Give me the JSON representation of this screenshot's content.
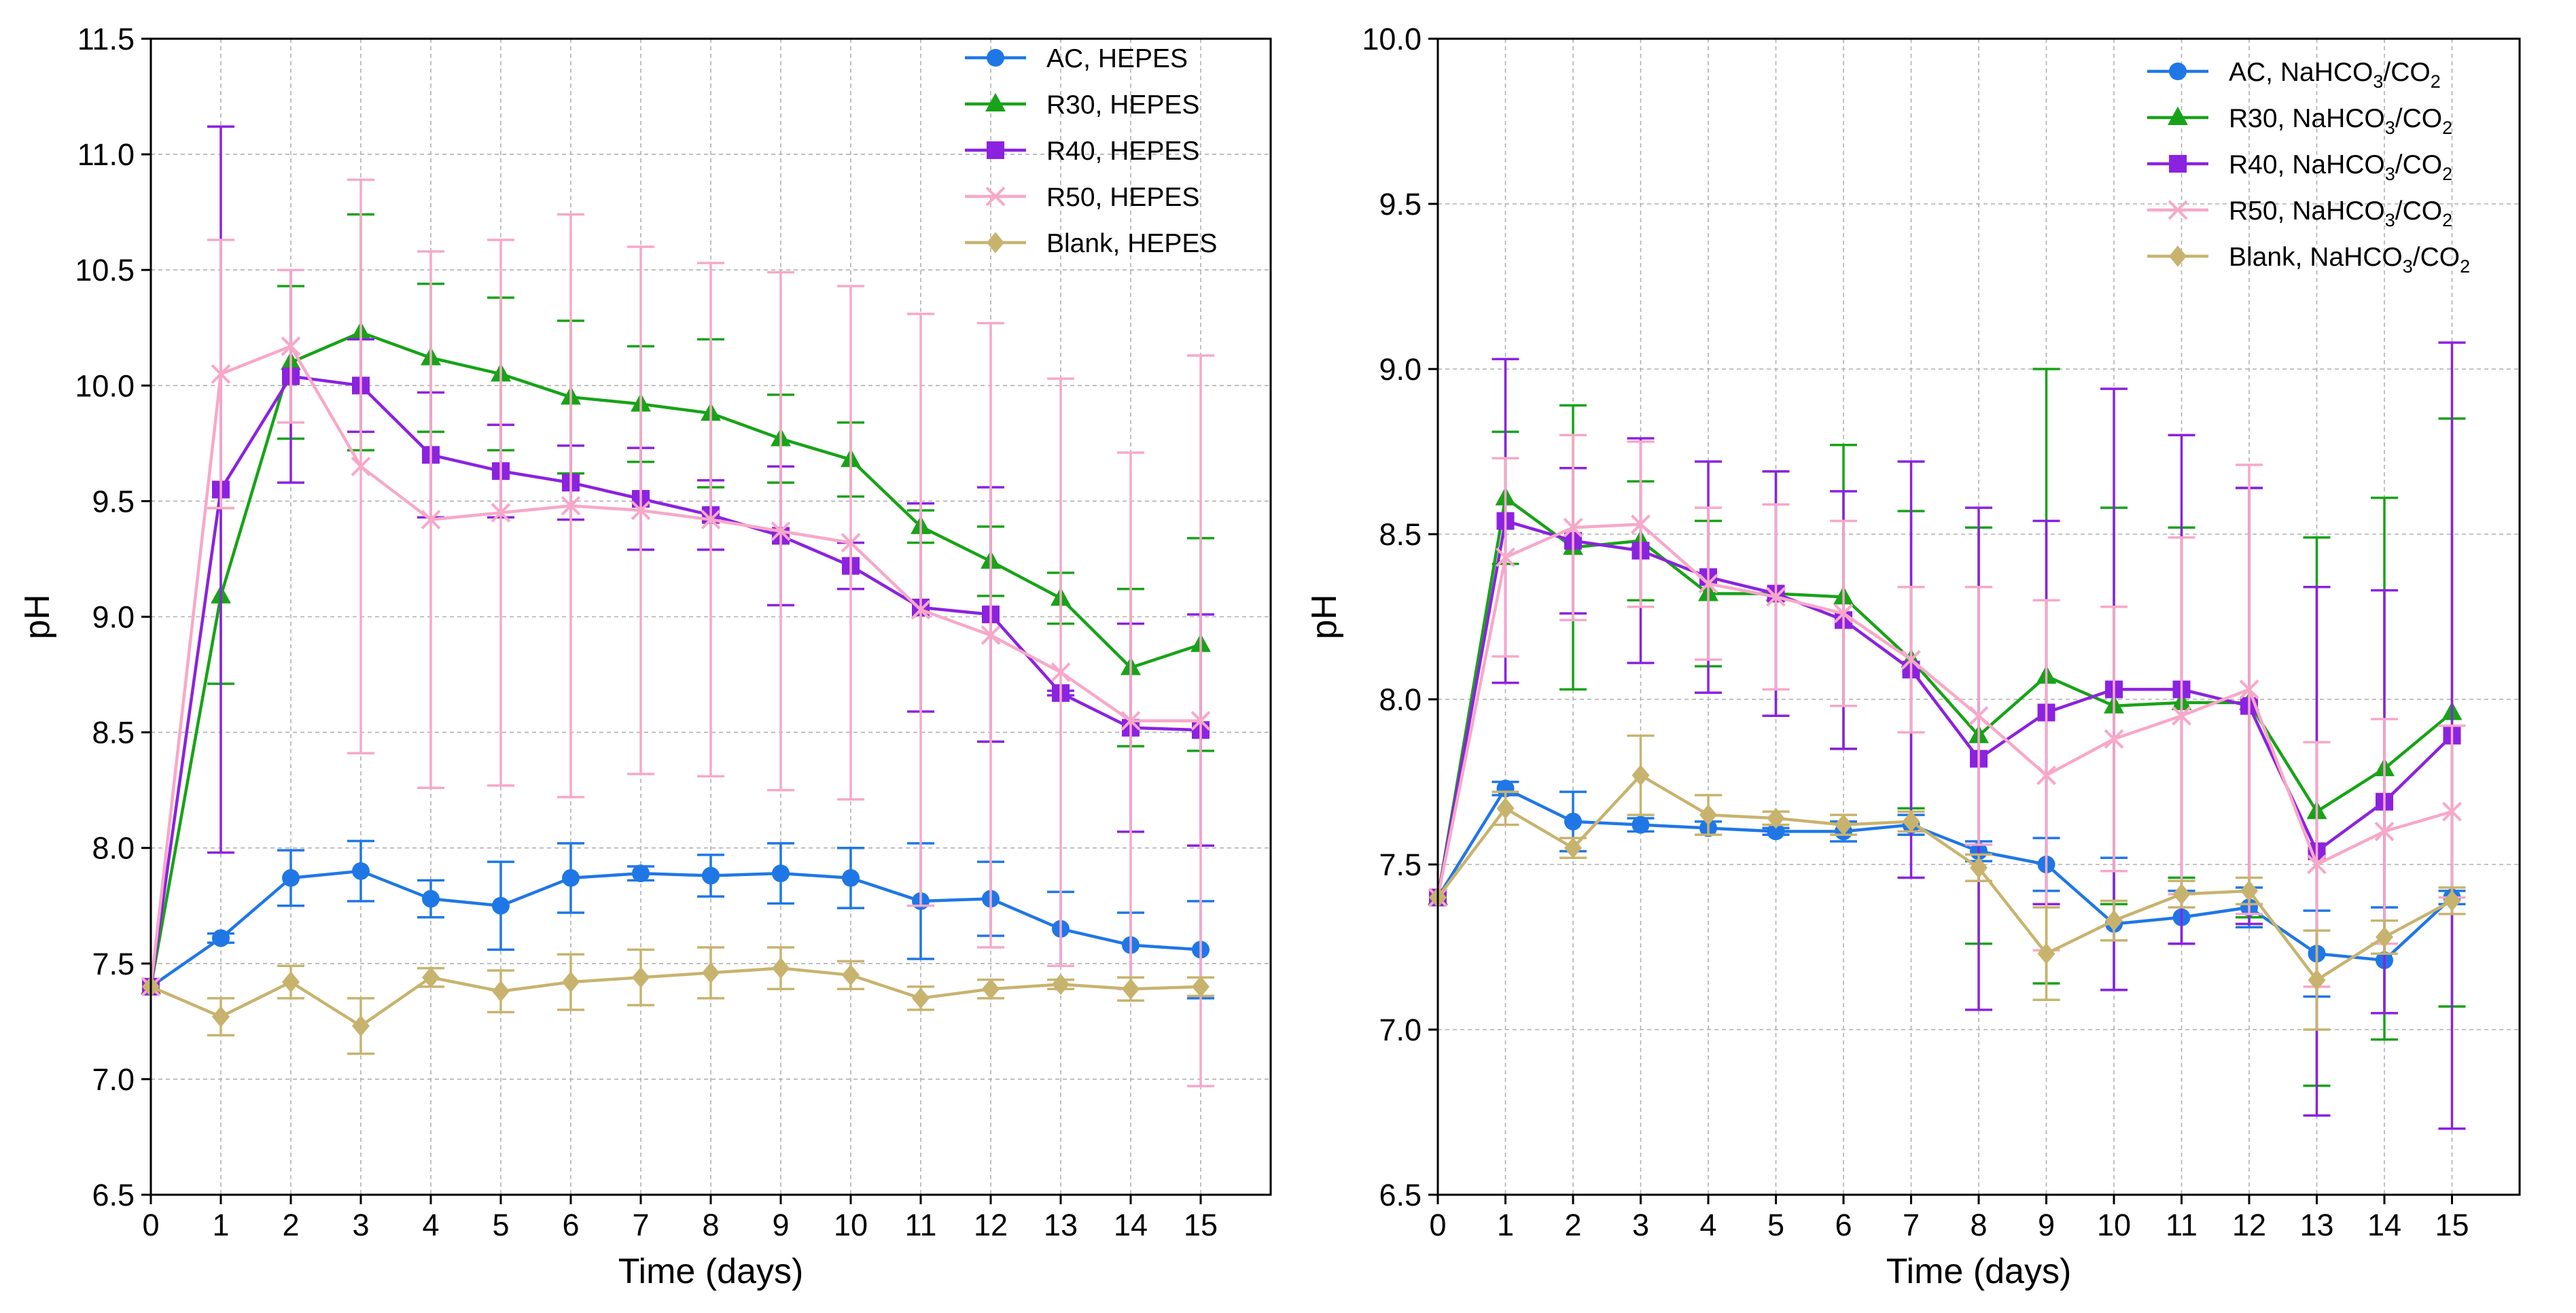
{
  "chart_data": [
    {
      "type": "line",
      "title": "",
      "xlabel": "Time (days)",
      "ylabel": "pH",
      "xlim": [
        0,
        16
      ],
      "ylim": [
        6.5,
        11.5
      ],
      "xticks": [
        0,
        1,
        2,
        3,
        4,
        5,
        6,
        7,
        8,
        9,
        10,
        11,
        12,
        13,
        14,
        15
      ],
      "yticks": [
        6.5,
        7.0,
        7.5,
        8.0,
        8.5,
        9.0,
        9.5,
        10.0,
        10.5,
        11.0,
        11.5
      ],
      "ytick_labels": [
        "6.5",
        "7.0",
        "7.5",
        "8.0",
        "8.5",
        "9.0",
        "9.5",
        "10.0",
        "10.5",
        "11.0",
        "11.5"
      ],
      "grid": true,
      "error_bars": true,
      "legend_position": "top-right",
      "x": [
        0,
        1,
        2,
        3,
        4,
        5,
        6,
        7,
        8,
        9,
        10,
        11,
        12,
        13,
        14,
        15
      ],
      "series": [
        {
          "name": "AC, HEPES",
          "label": [
            "AC, HEPES"
          ],
          "color": "#1f77e6",
          "marker": "circle",
          "values": [
            7.4,
            7.61,
            7.87,
            7.9,
            7.78,
            7.75,
            7.87,
            7.89,
            7.88,
            7.89,
            7.87,
            7.77,
            7.78,
            7.65,
            7.58,
            7.56
          ],
          "errors": [
            0,
            0.02,
            0.12,
            0.13,
            0.08,
            0.19,
            0.15,
            0.03,
            0.09,
            0.13,
            0.13,
            0.25,
            0.16,
            0.16,
            0.14,
            0.21
          ]
        },
        {
          "name": "R30, HEPES",
          "label": [
            "R30, HEPES"
          ],
          "color": "#17a317",
          "marker": "triangle",
          "values": [
            7.4,
            9.09,
            10.1,
            10.23,
            10.12,
            10.05,
            9.95,
            9.92,
            9.88,
            9.77,
            9.68,
            9.39,
            9.24,
            9.08,
            8.78,
            8.88
          ],
          "errors": [
            0,
            0.38,
            0.33,
            0.51,
            0.32,
            0.33,
            0.33,
            0.25,
            0.32,
            0.19,
            0.16,
            0.07,
            0.15,
            0.11,
            0.34,
            0.46
          ]
        },
        {
          "name": "R40, HEPES",
          "label": [
            "R40, HEPES"
          ],
          "color": "#8b22e0",
          "marker": "square",
          "values": [
            7.4,
            9.55,
            10.04,
            10.0,
            9.7,
            9.63,
            9.58,
            9.51,
            9.44,
            9.35,
            9.22,
            9.04,
            9.01,
            8.67,
            8.52,
            8.51
          ],
          "errors": [
            0,
            1.57,
            0.46,
            0.2,
            0.27,
            0.2,
            0.16,
            0.22,
            0.15,
            0.3,
            0.1,
            0.45,
            0.55,
            0.01,
            0.45,
            0.5
          ]
        },
        {
          "name": "R50, HEPES",
          "label": [
            "R50, HEPES"
          ],
          "color": "#f7a8c8",
          "marker": "x",
          "values": [
            7.4,
            10.05,
            10.17,
            9.65,
            9.42,
            9.45,
            9.48,
            9.46,
            9.42,
            9.37,
            9.32,
            9.03,
            8.92,
            8.76,
            8.55,
            8.55
          ],
          "errors": [
            0,
            0.58,
            0.33,
            1.24,
            1.16,
            1.18,
            1.26,
            1.14,
            1.11,
            1.12,
            1.11,
            1.28,
            1.35,
            1.27,
            1.16,
            1.58
          ]
        },
        {
          "name": "Blank, HEPES",
          "label": [
            "Blank, HEPES"
          ],
          "color": "#c8b36e",
          "marker": "diamond",
          "values": [
            7.4,
            7.27,
            7.42,
            7.23,
            7.44,
            7.38,
            7.42,
            7.44,
            7.46,
            7.48,
            7.45,
            7.35,
            7.39,
            7.41,
            7.39,
            7.4
          ],
          "errors": [
            0,
            0.08,
            0.07,
            0.12,
            0.04,
            0.09,
            0.12,
            0.12,
            0.11,
            0.09,
            0.06,
            0.05,
            0.04,
            0.02,
            0.05,
            0.04
          ]
        }
      ]
    },
    {
      "type": "line",
      "title": "",
      "xlabel": "Time (days)",
      "ylabel": "pH",
      "xlim": [
        0,
        16
      ],
      "ylim": [
        6.5,
        10.0
      ],
      "xticks": [
        0,
        1,
        2,
        3,
        4,
        5,
        6,
        7,
        8,
        9,
        10,
        11,
        12,
        13,
        14,
        15
      ],
      "yticks": [
        6.5,
        7.0,
        7.5,
        8.0,
        8.5,
        9.0,
        9.5,
        10.0
      ],
      "ytick_labels": [
        "6.5",
        "7.0",
        "7.5",
        "8.0",
        "8.5",
        "9.0",
        "9.5",
        "10.0"
      ],
      "grid": true,
      "error_bars": true,
      "legend_position": "top-right",
      "x": [
        0,
        1,
        2,
        3,
        4,
        5,
        6,
        7,
        8,
        9,
        10,
        11,
        12,
        13,
        14,
        15
      ],
      "series": [
        {
          "name": "AC, NaHCO3/CO2",
          "label": [
            "AC, NaHCO",
            "3",
            "/CO",
            "2"
          ],
          "color": "#1f77e6",
          "marker": "circle",
          "values": [
            7.4,
            7.73,
            7.63,
            7.62,
            7.61,
            7.6,
            7.6,
            7.62,
            7.54,
            7.5,
            7.32,
            7.34,
            7.37,
            7.23,
            7.21,
            7.4
          ],
          "errors": [
            0,
            0.02,
            0.09,
            0.02,
            0.02,
            0.01,
            0.03,
            0.03,
            0.03,
            0.08,
            0.2,
            0.08,
            0.06,
            0.13,
            0.16,
            0.02
          ]
        },
        {
          "name": "R30, NaHCO3/CO2",
          "label": [
            "R30, NaHCO",
            "3",
            "/CO",
            "2"
          ],
          "color": "#17a317",
          "marker": "triangle",
          "values": [
            7.4,
            8.61,
            8.46,
            8.48,
            8.32,
            8.32,
            8.31,
            8.12,
            7.89,
            8.07,
            7.98,
            7.99,
            7.99,
            7.66,
            7.79,
            7.96
          ],
          "errors": [
            0,
            0.2,
            0.43,
            0.18,
            0.22,
            0.37,
            0.46,
            0.45,
            0.63,
            0.93,
            0.6,
            0.53,
            0.65,
            0.83,
            0.82,
            0.89
          ]
        },
        {
          "name": "R40, NaHCO3/CO2",
          "label": [
            "R40, NaHCO",
            "3",
            "/CO",
            "2"
          ],
          "color": "#8b22e0",
          "marker": "square",
          "values": [
            7.4,
            8.54,
            8.48,
            8.45,
            8.37,
            8.32,
            8.24,
            8.09,
            7.82,
            7.96,
            8.03,
            8.03,
            7.98,
            7.54,
            7.69,
            7.89
          ],
          "errors": [
            0,
            0.49,
            0.22,
            0.34,
            0.35,
            0.37,
            0.39,
            0.63,
            0.76,
            0.58,
            0.91,
            0.77,
            0.66,
            0.8,
            0.64,
            1.19
          ]
        },
        {
          "name": "R50, NaHCO3/CO2",
          "label": [
            "R50, NaHCO",
            "3",
            "/CO",
            "2"
          ],
          "color": "#f7a8c8",
          "marker": "x",
          "values": [
            7.4,
            8.43,
            8.52,
            8.53,
            8.35,
            8.31,
            8.26,
            8.12,
            7.95,
            7.77,
            7.88,
            7.95,
            8.03,
            7.5,
            7.6,
            7.66
          ],
          "errors": [
            0,
            0.3,
            0.28,
            0.25,
            0.23,
            0.28,
            0.28,
            0.22,
            0.39,
            0.53,
            0.4,
            0.54,
            0.68,
            0.37,
            0.34,
            0.26
          ]
        },
        {
          "name": "Blank, NaHCO3/CO2",
          "label": [
            "Blank, NaHCO",
            "3",
            "/CO",
            "2"
          ],
          "color": "#c8b36e",
          "marker": "diamond",
          "values": [
            7.4,
            7.67,
            7.55,
            7.77,
            7.65,
            7.64,
            7.62,
            7.63,
            7.49,
            7.23,
            7.33,
            7.41,
            7.42,
            7.15,
            7.28,
            7.39
          ],
          "errors": [
            0,
            0.05,
            0.03,
            0.12,
            0.06,
            0.02,
            0.03,
            0.03,
            0.04,
            0.14,
            0.06,
            0.04,
            0.04,
            0.15,
            0.05,
            0.04
          ]
        }
      ]
    }
  ]
}
